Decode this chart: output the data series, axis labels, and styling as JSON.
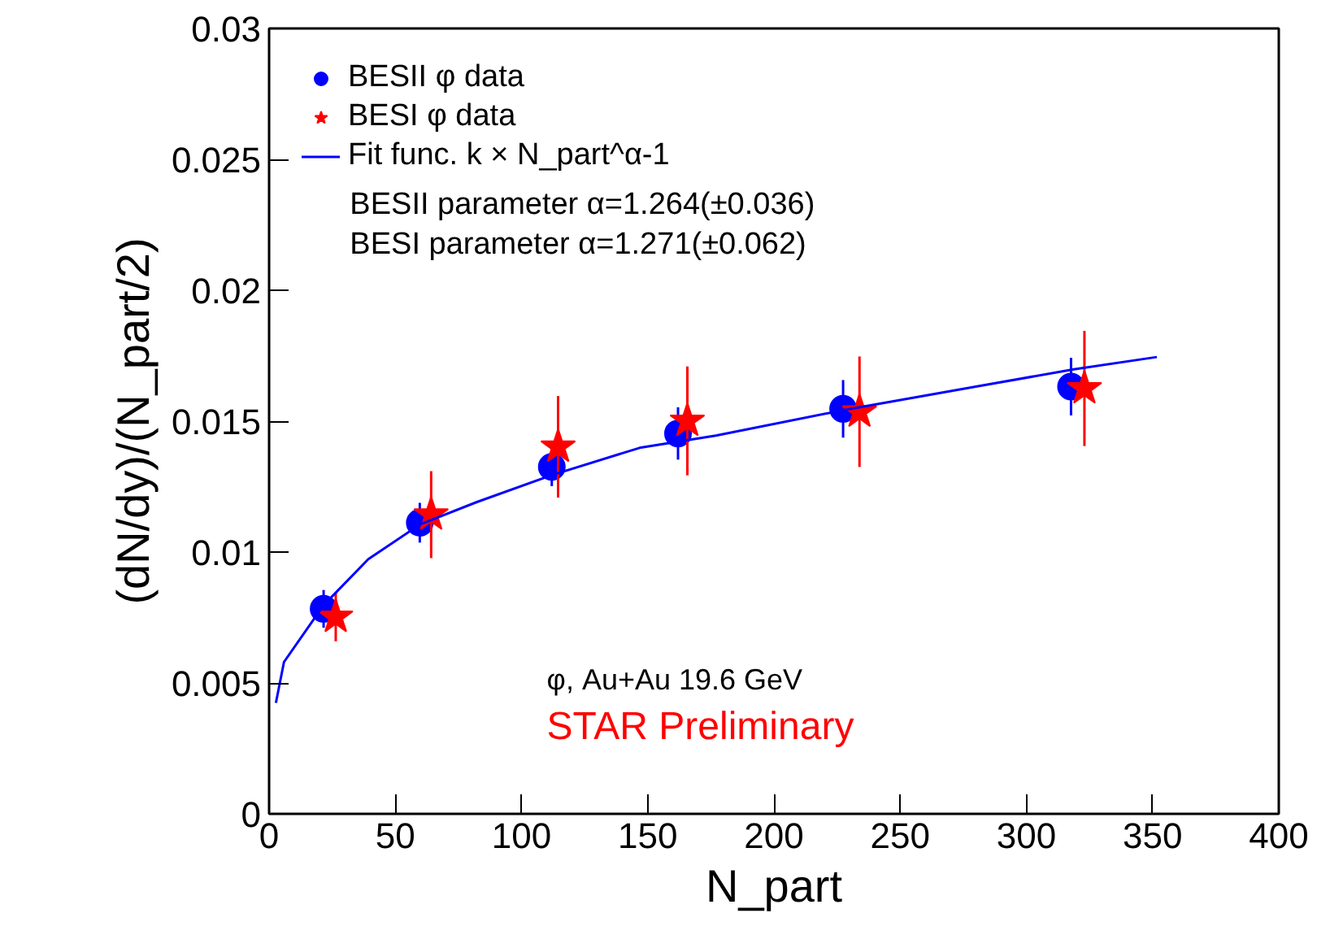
{
  "chart_data": {
    "type": "scatter",
    "xlabel": "N_part",
    "ylabel": "(dN/dy)/(N_part/2)",
    "xlim": [
      0,
      400
    ],
    "xticks": [
      0,
      50,
      100,
      150,
      200,
      250,
      300,
      350,
      400
    ],
    "ylim": [
      0,
      0.03
    ],
    "yticks": [
      0,
      0.005,
      0.01,
      0.015,
      0.02,
      0.025,
      0.03
    ],
    "grid": false,
    "legend": "top left",
    "series": [
      {
        "name": "BESII φ data",
        "marker": "circle",
        "color": "#0000ff",
        "x": [
          21.6,
          59.7,
          112,
          162,
          227.4,
          317.7
        ],
        "values": [
          0.00783,
          0.01112,
          0.01325,
          0.01453,
          0.01547,
          0.01632
        ],
        "errors": [
          0.00072,
          0.00076,
          0.00073,
          0.001,
          0.0011,
          0.0011
        ]
      },
      {
        "name": "BESI φ data",
        "marker": "star",
        "color": "#ff0000",
        "x": [
          26.4,
          64.2,
          114.5,
          165.7,
          233.9,
          323
        ],
        "values": [
          0.00752,
          0.01143,
          0.01402,
          0.01501,
          0.01536,
          0.01625
        ],
        "errors": [
          0.00093,
          0.00166,
          0.00194,
          0.00208,
          0.00211,
          0.0022
        ]
      },
      {
        "name": "Fit func. k × N_part^α-1",
        "type": "line",
        "color": "#0000ff",
        "x": [
          2.7,
          5.9,
          21.6,
          39.3,
          59.7,
          82.3,
          112,
          146.8,
          177,
          227.4,
          280,
          318.8,
          351.7
        ],
        "values": [
          0.00424,
          0.0058,
          0.00797,
          0.00973,
          0.01105,
          0.01191,
          0.01294,
          0.01398,
          0.01445,
          0.01542,
          0.01632,
          0.01698,
          0.01745
        ]
      }
    ],
    "annotations": [
      "BESII parameter α=1.264(±0.036)",
      "BESI parameter α=1.271(±0.062)",
      "φ, Au+Au 19.6 GeV",
      "STAR Preliminary"
    ]
  }
}
